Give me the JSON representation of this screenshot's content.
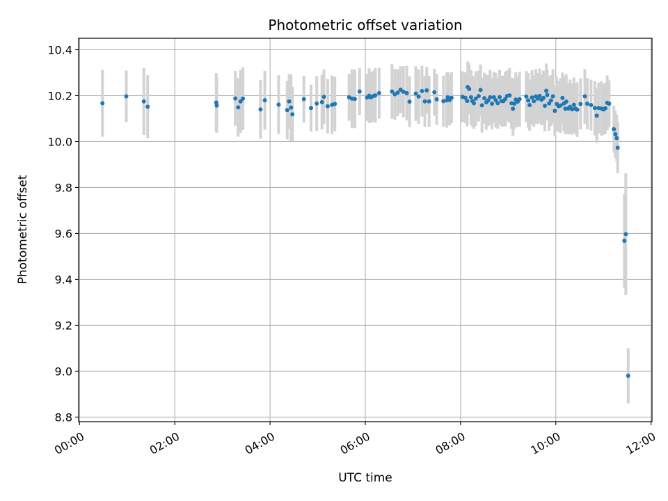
{
  "chart_data": {
    "type": "scatter",
    "title": "Photometric offset variation",
    "xlabel": "UTC time",
    "ylabel": "Photometric offset",
    "x_unit": "hours",
    "xlim": [
      -0.02,
      12.02
    ],
    "ylim": [
      8.78,
      10.45
    ],
    "x_ticks": [
      0,
      2,
      4,
      6,
      8,
      10,
      12
    ],
    "x_tick_labels": [
      "00:00",
      "02:00",
      "04:00",
      "06:00",
      "08:00",
      "10:00",
      "12:00"
    ],
    "y_ticks": [
      8.8,
      9.0,
      9.2,
      9.4,
      9.6,
      9.8,
      10.0,
      10.2,
      10.4
    ],
    "y_tick_labels": [
      "8.8",
      "9.0",
      "9.2",
      "9.4",
      "9.6",
      "9.8",
      "10.0",
      "10.2",
      "10.4"
    ],
    "grid": true,
    "colors": {
      "points": "#1f77b4",
      "errorbars": "#d3d3d3"
    },
    "points": [
      {
        "x": 0.48,
        "y": 10.167,
        "err": 0.146
      },
      {
        "x": 0.98,
        "y": 10.197,
        "err": 0.112
      },
      {
        "x": 1.35,
        "y": 10.175,
        "err": 0.146
      },
      {
        "x": 1.43,
        "y": 10.152,
        "err": 0.137
      },
      {
        "x": 2.87,
        "y": 10.17,
        "err": 0.128
      },
      {
        "x": 2.88,
        "y": 10.157,
        "err": 0.119
      },
      {
        "x": 3.27,
        "y": 10.188,
        "err": 0.119
      },
      {
        "x": 3.33,
        "y": 10.149,
        "err": 0.128
      },
      {
        "x": 3.38,
        "y": 10.175,
        "err": 0.137
      },
      {
        "x": 3.43,
        "y": 10.187,
        "err": 0.137
      },
      {
        "x": 3.8,
        "y": 10.14,
        "err": 0.128
      },
      {
        "x": 3.89,
        "y": 10.18,
        "err": 0.128
      },
      {
        "x": 4.18,
        "y": 10.161,
        "err": 0.128
      },
      {
        "x": 4.36,
        "y": 10.137,
        "err": 0.128
      },
      {
        "x": 4.4,
        "y": 10.175,
        "err": 0.119
      },
      {
        "x": 4.44,
        "y": 10.148,
        "err": 0.146
      },
      {
        "x": 4.47,
        "y": 10.119,
        "err": 0.119
      },
      {
        "x": 4.71,
        "y": 10.185,
        "err": 0.102
      },
      {
        "x": 4.86,
        "y": 10.146,
        "err": 0.102
      },
      {
        "x": 4.98,
        "y": 10.166,
        "err": 0.119
      },
      {
        "x": 5.09,
        "y": 10.172,
        "err": 0.119
      },
      {
        "x": 5.13,
        "y": 10.195,
        "err": 0.119
      },
      {
        "x": 5.21,
        "y": 10.154,
        "err": 0.119
      },
      {
        "x": 5.3,
        "y": 10.16,
        "err": 0.128
      },
      {
        "x": 5.36,
        "y": 10.164,
        "err": 0.119
      },
      {
        "x": 5.66,
        "y": 10.193,
        "err": 0.102
      },
      {
        "x": 5.72,
        "y": 10.187,
        "err": 0.128
      },
      {
        "x": 5.78,
        "y": 10.186,
        "err": 0.128
      },
      {
        "x": 5.88,
        "y": 10.218,
        "err": 0.102
      },
      {
        "x": 6.04,
        "y": 10.192,
        "err": 0.102
      },
      {
        "x": 6.08,
        "y": 10.2,
        "err": 0.119
      },
      {
        "x": 6.12,
        "y": 10.193,
        "err": 0.111
      },
      {
        "x": 6.17,
        "y": 10.198,
        "err": 0.111
      },
      {
        "x": 6.21,
        "y": 10.201,
        "err": 0.119
      },
      {
        "x": 6.29,
        "y": 10.211,
        "err": 0.111
      },
      {
        "x": 6.56,
        "y": 10.218,
        "err": 0.119
      },
      {
        "x": 6.62,
        "y": 10.206,
        "err": 0.111
      },
      {
        "x": 6.68,
        "y": 10.213,
        "err": 0.102
      },
      {
        "x": 6.74,
        "y": 10.226,
        "err": 0.102
      },
      {
        "x": 6.8,
        "y": 10.217,
        "err": 0.111
      },
      {
        "x": 6.87,
        "y": 10.211,
        "err": 0.119
      },
      {
        "x": 6.93,
        "y": 10.174,
        "err": 0.111
      },
      {
        "x": 7.06,
        "y": 10.209,
        "err": 0.119
      },
      {
        "x": 7.12,
        "y": 10.196,
        "err": 0.119
      },
      {
        "x": 7.19,
        "y": 10.22,
        "err": 0.111
      },
      {
        "x": 7.25,
        "y": 10.175,
        "err": 0.111
      },
      {
        "x": 7.29,
        "y": 10.223,
        "err": 0.102
      },
      {
        "x": 7.34,
        "y": 10.175,
        "err": 0.111
      },
      {
        "x": 7.45,
        "y": 10.215,
        "err": 0.102
      },
      {
        "x": 7.5,
        "y": 10.184,
        "err": 0.111
      },
      {
        "x": 7.64,
        "y": 10.176,
        "err": 0.111
      },
      {
        "x": 7.71,
        "y": 10.18,
        "err": 0.119
      },
      {
        "x": 7.73,
        "y": 10.193,
        "err": 0.111
      },
      {
        "x": 7.77,
        "y": 10.181,
        "err": 0.111
      },
      {
        "x": 7.81,
        "y": 10.191,
        "err": 0.111
      },
      {
        "x": 8.04,
        "y": 10.195,
        "err": 0.111
      },
      {
        "x": 8.1,
        "y": 10.191,
        "err": 0.111
      },
      {
        "x": 8.14,
        "y": 10.177,
        "err": 0.111
      },
      {
        "x": 8.15,
        "y": 10.238,
        "err": 0.111
      },
      {
        "x": 8.18,
        "y": 10.229,
        "err": 0.111
      },
      {
        "x": 8.22,
        "y": 10.193,
        "err": 0.119
      },
      {
        "x": 8.25,
        "y": 10.176,
        "err": 0.111
      },
      {
        "x": 8.28,
        "y": 10.167,
        "err": 0.111
      },
      {
        "x": 8.32,
        "y": 10.187,
        "err": 0.119
      },
      {
        "x": 8.38,
        "y": 10.198,
        "err": 0.111
      },
      {
        "x": 8.42,
        "y": 10.225,
        "err": 0.111
      },
      {
        "x": 8.45,
        "y": 10.158,
        "err": 0.119
      },
      {
        "x": 8.5,
        "y": 10.189,
        "err": 0.111
      },
      {
        "x": 8.54,
        "y": 10.171,
        "err": 0.119
      },
      {
        "x": 8.58,
        "y": 10.179,
        "err": 0.111
      },
      {
        "x": 8.62,
        "y": 10.193,
        "err": 0.119
      },
      {
        "x": 8.66,
        "y": 10.165,
        "err": 0.111
      },
      {
        "x": 8.7,
        "y": 10.193,
        "err": 0.111
      },
      {
        "x": 8.74,
        "y": 10.18,
        "err": 0.119
      },
      {
        "x": 8.78,
        "y": 10.167,
        "err": 0.111
      },
      {
        "x": 8.82,
        "y": 10.194,
        "err": 0.119
      },
      {
        "x": 8.86,
        "y": 10.177,
        "err": 0.111
      },
      {
        "x": 8.9,
        "y": 10.176,
        "err": 0.111
      },
      {
        "x": 8.94,
        "y": 10.186,
        "err": 0.119
      },
      {
        "x": 8.98,
        "y": 10.199,
        "err": 0.111
      },
      {
        "x": 9.03,
        "y": 10.201,
        "err": 0.119
      },
      {
        "x": 9.07,
        "y": 10.167,
        "err": 0.111
      },
      {
        "x": 9.1,
        "y": 10.143,
        "err": 0.119
      },
      {
        "x": 9.13,
        "y": 10.165,
        "err": 0.111
      },
      {
        "x": 9.16,
        "y": 10.183,
        "err": 0.119
      },
      {
        "x": 9.2,
        "y": 10.174,
        "err": 0.111
      },
      {
        "x": 9.24,
        "y": 10.185,
        "err": 0.119
      },
      {
        "x": 9.38,
        "y": 10.196,
        "err": 0.111
      },
      {
        "x": 9.42,
        "y": 10.179,
        "err": 0.119
      },
      {
        "x": 9.45,
        "y": 10.159,
        "err": 0.111
      },
      {
        "x": 9.5,
        "y": 10.192,
        "err": 0.119
      },
      {
        "x": 9.54,
        "y": 10.176,
        "err": 0.111
      },
      {
        "x": 9.58,
        "y": 10.197,
        "err": 0.119
      },
      {
        "x": 9.62,
        "y": 10.187,
        "err": 0.111
      },
      {
        "x": 9.66,
        "y": 10.199,
        "err": 0.119
      },
      {
        "x": 9.7,
        "y": 10.182,
        "err": 0.111
      },
      {
        "x": 9.74,
        "y": 10.19,
        "err": 0.119
      },
      {
        "x": 9.77,
        "y": 10.156,
        "err": 0.111
      },
      {
        "x": 9.8,
        "y": 10.221,
        "err": 0.119
      },
      {
        "x": 9.82,
        "y": 10.203,
        "err": 0.111
      },
      {
        "x": 9.86,
        "y": 10.166,
        "err": 0.119
      },
      {
        "x": 9.9,
        "y": 10.179,
        "err": 0.111
      },
      {
        "x": 9.94,
        "y": 10.197,
        "err": 0.119
      },
      {
        "x": 9.98,
        "y": 10.134,
        "err": 0.111
      },
      {
        "x": 10.02,
        "y": 10.164,
        "err": 0.119
      },
      {
        "x": 10.06,
        "y": 10.154,
        "err": 0.111
      },
      {
        "x": 10.1,
        "y": 10.157,
        "err": 0.119
      },
      {
        "x": 10.14,
        "y": 10.19,
        "err": 0.111
      },
      {
        "x": 10.17,
        "y": 10.166,
        "err": 0.119
      },
      {
        "x": 10.2,
        "y": 10.143,
        "err": 0.111
      },
      {
        "x": 10.22,
        "y": 10.174,
        "err": 0.119
      },
      {
        "x": 10.26,
        "y": 10.144,
        "err": 0.111
      },
      {
        "x": 10.3,
        "y": 10.151,
        "err": 0.119
      },
      {
        "x": 10.34,
        "y": 10.141,
        "err": 0.111
      },
      {
        "x": 10.38,
        "y": 10.16,
        "err": 0.119
      },
      {
        "x": 10.41,
        "y": 10.143,
        "err": 0.111
      },
      {
        "x": 10.45,
        "y": 10.139,
        "err": 0.119
      },
      {
        "x": 10.52,
        "y": 10.164,
        "err": 0.111
      },
      {
        "x": 10.61,
        "y": 10.197,
        "err": 0.119
      },
      {
        "x": 10.66,
        "y": 10.165,
        "err": 0.111
      },
      {
        "x": 10.74,
        "y": 10.159,
        "err": 0.111
      },
      {
        "x": 10.82,
        "y": 10.146,
        "err": 0.119
      },
      {
        "x": 10.86,
        "y": 10.113,
        "err": 0.119
      },
      {
        "x": 10.9,
        "y": 10.146,
        "err": 0.111
      },
      {
        "x": 10.96,
        "y": 10.144,
        "err": 0.119
      },
      {
        "x": 11.0,
        "y": 10.14,
        "err": 0.111
      },
      {
        "x": 11.04,
        "y": 10.145,
        "err": 0.111
      },
      {
        "x": 11.08,
        "y": 10.169,
        "err": 0.119
      },
      {
        "x": 11.12,
        "y": 10.165,
        "err": 0.102
      },
      {
        "x": 11.22,
        "y": 10.054,
        "err": 0.102
      },
      {
        "x": 11.25,
        "y": 10.032,
        "err": 0.102
      },
      {
        "x": 11.28,
        "y": 10.015,
        "err": 0.102
      },
      {
        "x": 11.3,
        "y": 9.973,
        "err": 0.111
      },
      {
        "x": 11.44,
        "y": 9.568,
        "err": 0.204
      },
      {
        "x": 11.47,
        "y": 9.597,
        "err": 0.265
      },
      {
        "x": 11.52,
        "y": 8.98,
        "err": 0.12
      }
    ]
  }
}
